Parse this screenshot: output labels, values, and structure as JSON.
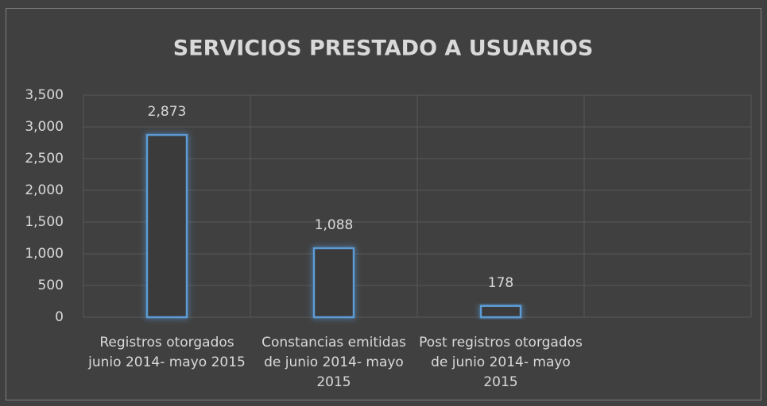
{
  "chart_data": {
    "type": "bar",
    "title": "SERVICIOS PRESTADO A USUARIOS",
    "categories": [
      "Registros otorgados junio 2014- mayo 2015",
      "Constancias emitidas de junio 2014- mayo 2015",
      "Post registros otorgados de junio 2014- mayo 2015",
      null
    ],
    "values": [
      2873,
      1088,
      178,
      null
    ],
    "value_labels": [
      "2,873",
      "1,088",
      "178",
      null
    ],
    "color": "#5b9bd5",
    "ylim": [
      0,
      3500
    ],
    "yticks": [
      0,
      500,
      {
        "value": 1000,
        "label": "1,000"
      },
      {
        "value": 1500,
        "label": "1,500"
      },
      {
        "value": 2000,
        "label": "2,000"
      },
      {
        "value": 2500,
        "label": "2,500"
      },
      {
        "value": 3000,
        "label": "3,000"
      },
      {
        "value": 3500,
        "label": "3,500"
      }
    ],
    "grid": true
  }
}
